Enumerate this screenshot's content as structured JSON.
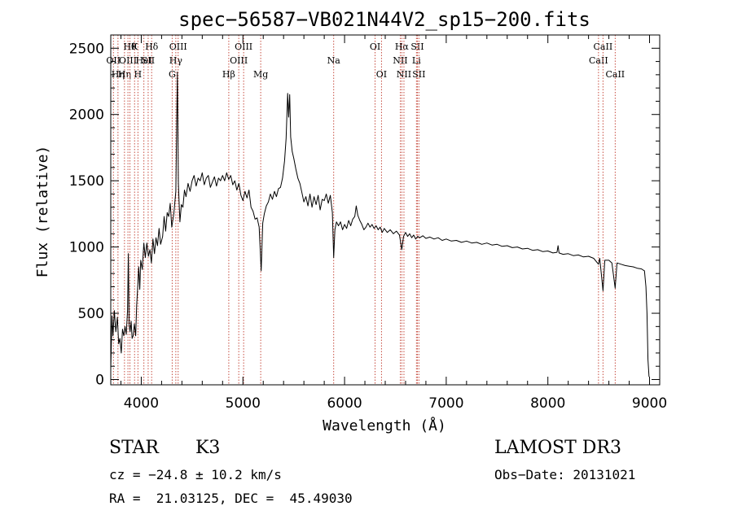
{
  "chart_data": {
    "type": "line",
    "title": "spec−56587−VB021N44V2_sp15−200.fits",
    "xlabel": "Wavelength (Å)",
    "ylabel": "Flux (relative)",
    "xlim": [
      3700,
      9100
    ],
    "ylim": [
      -40,
      2600
    ],
    "xticks": [
      4000,
      5000,
      6000,
      7000,
      8000,
      9000
    ],
    "yticks": [
      0,
      500,
      1000,
      1500,
      2000,
      2500
    ],
    "line_color": "#000000",
    "marker_color": "#c0392b",
    "series": [
      {
        "name": "flux",
        "points": [
          [
            3700,
            80
          ],
          [
            3712,
            480
          ],
          [
            3722,
            330
          ],
          [
            3735,
            520
          ],
          [
            3750,
            360
          ],
          [
            3765,
            470
          ],
          [
            3778,
            270
          ],
          [
            3790,
            310
          ],
          [
            3803,
            200
          ],
          [
            3815,
            380
          ],
          [
            3828,
            330
          ],
          [
            3840,
            400
          ],
          [
            3852,
            340
          ],
          [
            3865,
            520
          ],
          [
            3873,
            950
          ],
          [
            3880,
            420
          ],
          [
            3890,
            360
          ],
          [
            3900,
            440
          ],
          [
            3910,
            310
          ],
          [
            3920,
            330
          ],
          [
            3932,
            420
          ],
          [
            3945,
            330
          ],
          [
            3955,
            560
          ],
          [
            3965,
            700
          ],
          [
            3975,
            850
          ],
          [
            3985,
            680
          ],
          [
            3995,
            900
          ],
          [
            4010,
            830
          ],
          [
            4025,
            1030
          ],
          [
            4040,
            920
          ],
          [
            4055,
            1030
          ],
          [
            4070,
            930
          ],
          [
            4085,
            980
          ],
          [
            4100,
            880
          ],
          [
            4115,
            1060
          ],
          [
            4130,
            950
          ],
          [
            4145,
            1070
          ],
          [
            4160,
            1010
          ],
          [
            4175,
            1140
          ],
          [
            4190,
            1020
          ],
          [
            4210,
            1080
          ],
          [
            4225,
            1230
          ],
          [
            4240,
            1120
          ],
          [
            4255,
            1260
          ],
          [
            4270,
            1230
          ],
          [
            4285,
            1330
          ],
          [
            4300,
            1150
          ],
          [
            4320,
            1250
          ],
          [
            4340,
            1420
          ],
          [
            4355,
            2320
          ],
          [
            4365,
            1480
          ],
          [
            4380,
            1190
          ],
          [
            4395,
            1320
          ],
          [
            4410,
            1300
          ],
          [
            4425,
            1430
          ],
          [
            4440,
            1380
          ],
          [
            4460,
            1480
          ],
          [
            4480,
            1420
          ],
          [
            4500,
            1500
          ],
          [
            4520,
            1540
          ],
          [
            4540,
            1460
          ],
          [
            4560,
            1520
          ],
          [
            4580,
            1500
          ],
          [
            4600,
            1560
          ],
          [
            4620,
            1470
          ],
          [
            4640,
            1520
          ],
          [
            4660,
            1540
          ],
          [
            4680,
            1450
          ],
          [
            4700,
            1490
          ],
          [
            4720,
            1530
          ],
          [
            4740,
            1460
          ],
          [
            4760,
            1520
          ],
          [
            4780,
            1500
          ],
          [
            4800,
            1540
          ],
          [
            4820,
            1500
          ],
          [
            4840,
            1560
          ],
          [
            4860,
            1510
          ],
          [
            4880,
            1540
          ],
          [
            4900,
            1470
          ],
          [
            4920,
            1500
          ],
          [
            4940,
            1430
          ],
          [
            4960,
            1480
          ],
          [
            4980,
            1390
          ],
          [
            5000,
            1350
          ],
          [
            5020,
            1420
          ],
          [
            5040,
            1370
          ],
          [
            5060,
            1430
          ],
          [
            5080,
            1300
          ],
          [
            5100,
            1270
          ],
          [
            5120,
            1210
          ],
          [
            5140,
            1220
          ],
          [
            5160,
            1150
          ],
          [
            5180,
            820
          ],
          [
            5195,
            1180
          ],
          [
            5210,
            1250
          ],
          [
            5230,
            1310
          ],
          [
            5250,
            1340
          ],
          [
            5270,
            1400
          ],
          [
            5290,
            1360
          ],
          [
            5310,
            1420
          ],
          [
            5330,
            1380
          ],
          [
            5350,
            1440
          ],
          [
            5370,
            1450
          ],
          [
            5390,
            1520
          ],
          [
            5410,
            1650
          ],
          [
            5425,
            1820
          ],
          [
            5440,
            2160
          ],
          [
            5450,
            1980
          ],
          [
            5460,
            2150
          ],
          [
            5470,
            1830
          ],
          [
            5485,
            1720
          ],
          [
            5500,
            1670
          ],
          [
            5520,
            1590
          ],
          [
            5540,
            1520
          ],
          [
            5560,
            1480
          ],
          [
            5580,
            1410
          ],
          [
            5600,
            1340
          ],
          [
            5620,
            1380
          ],
          [
            5640,
            1310
          ],
          [
            5660,
            1400
          ],
          [
            5680,
            1300
          ],
          [
            5700,
            1380
          ],
          [
            5720,
            1320
          ],
          [
            5740,
            1390
          ],
          [
            5760,
            1280
          ],
          [
            5780,
            1360
          ],
          [
            5800,
            1350
          ],
          [
            5820,
            1400
          ],
          [
            5840,
            1330
          ],
          [
            5860,
            1390
          ],
          [
            5880,
            1260
          ],
          [
            5893,
            920
          ],
          [
            5905,
            1130
          ],
          [
            5920,
            1190
          ],
          [
            5940,
            1160
          ],
          [
            5960,
            1190
          ],
          [
            5980,
            1130
          ],
          [
            6000,
            1170
          ],
          [
            6020,
            1140
          ],
          [
            6040,
            1200
          ],
          [
            6060,
            1160
          ],
          [
            6080,
            1210
          ],
          [
            6100,
            1230
          ],
          [
            6115,
            1310
          ],
          [
            6130,
            1240
          ],
          [
            6150,
            1200
          ],
          [
            6170,
            1170
          ],
          [
            6190,
            1130
          ],
          [
            6210,
            1150
          ],
          [
            6230,
            1180
          ],
          [
            6250,
            1150
          ],
          [
            6270,
            1170
          ],
          [
            6290,
            1140
          ],
          [
            6310,
            1160
          ],
          [
            6330,
            1130
          ],
          [
            6350,
            1150
          ],
          [
            6370,
            1110
          ],
          [
            6390,
            1140
          ],
          [
            6420,
            1110
          ],
          [
            6450,
            1130
          ],
          [
            6480,
            1100
          ],
          [
            6510,
            1120
          ],
          [
            6540,
            1090
          ],
          [
            6563,
            980
          ],
          [
            6580,
            1080
          ],
          [
            6600,
            1110
          ],
          [
            6620,
            1080
          ],
          [
            6640,
            1100
          ],
          [
            6660,
            1070
          ],
          [
            6680,
            1090
          ],
          [
            6700,
            1060
          ],
          [
            6720,
            1080
          ],
          [
            6740,
            1070
          ],
          [
            6770,
            1085
          ],
          [
            6800,
            1065
          ],
          [
            6840,
            1075
          ],
          [
            6880,
            1060
          ],
          [
            6920,
            1070
          ],
          [
            6960,
            1050
          ],
          [
            7000,
            1060
          ],
          [
            7050,
            1045
          ],
          [
            7100,
            1050
          ],
          [
            7150,
            1035
          ],
          [
            7200,
            1045
          ],
          [
            7250,
            1030
          ],
          [
            7300,
            1035
          ],
          [
            7350,
            1020
          ],
          [
            7400,
            1030
          ],
          [
            7450,
            1015
          ],
          [
            7500,
            1020
          ],
          [
            7550,
            1005
          ],
          [
            7600,
            1010
          ],
          [
            7650,
            995
          ],
          [
            7700,
            1000
          ],
          [
            7750,
            985
          ],
          [
            7800,
            990
          ],
          [
            7850,
            975
          ],
          [
            7900,
            980
          ],
          [
            7950,
            965
          ],
          [
            8000,
            970
          ],
          [
            8050,
            955
          ],
          [
            8090,
            960
          ],
          [
            8100,
            1010
          ],
          [
            8110,
            955
          ],
          [
            8150,
            945
          ],
          [
            8200,
            950
          ],
          [
            8250,
            935
          ],
          [
            8300,
            940
          ],
          [
            8350,
            925
          ],
          [
            8400,
            930
          ],
          [
            8450,
            915
          ],
          [
            8498,
            870
          ],
          [
            8510,
            915
          ],
          [
            8542,
            670
          ],
          [
            8560,
            900
          ],
          [
            8600,
            900
          ],
          [
            8630,
            880
          ],
          [
            8662,
            690
          ],
          [
            8680,
            880
          ],
          [
            8720,
            870
          ],
          [
            8760,
            860
          ],
          [
            8800,
            855
          ],
          [
            8840,
            850
          ],
          [
            8880,
            840
          ],
          [
            8920,
            835
          ],
          [
            8950,
            820
          ],
          [
            8965,
            700
          ],
          [
            8975,
            500
          ],
          [
            8985,
            150
          ],
          [
            8995,
            20
          ]
        ]
      }
    ],
    "lines": [
      {
        "wl": 3726,
        "label": "OII",
        "row": 1
      },
      {
        "wl": 3771,
        "label": "Hη",
        "row": 2
      },
      {
        "wl": 3835,
        "label": "Hη",
        "row": 2
      },
      {
        "wl": 3869,
        "label": "OIII",
        "row": 1
      },
      {
        "wl": 3889,
        "label": "Hθ",
        "row": 0
      },
      {
        "wl": 3934,
        "label": "K",
        "row": 0
      },
      {
        "wl": 3967,
        "label": "H",
        "row": 2
      },
      {
        "wl": 4026,
        "label": "HeI",
        "row": 1
      },
      {
        "wl": 4068,
        "label": "SII",
        "row": 1
      },
      {
        "wl": 4102,
        "label": "Hδ",
        "row": 0
      },
      {
        "wl": 4304,
        "label": "G",
        "row": 2
      },
      {
        "wl": 4340,
        "label": "Hγ",
        "row": 1
      },
      {
        "wl": 4363,
        "label": "OIII",
        "row": 0
      },
      {
        "wl": 4861,
        "label": "Hβ",
        "row": 2
      },
      {
        "wl": 4959,
        "label": "OIII",
        "row": 1
      },
      {
        "wl": 5007,
        "label": "OIII",
        "row": 0
      },
      {
        "wl": 5175,
        "label": "Mg",
        "row": 2
      },
      {
        "wl": 5893,
        "label": "Na",
        "row": 1
      },
      {
        "wl": 6300,
        "label": "OI",
        "row": 0
      },
      {
        "wl": 6363,
        "label": "OI",
        "row": 2
      },
      {
        "wl": 6548,
        "label": "NII",
        "row": 1
      },
      {
        "wl": 6563,
        "label": "Hα",
        "row": 0
      },
      {
        "wl": 6584,
        "label": "NII",
        "row": 2
      },
      {
        "wl": 6707,
        "label": "Li",
        "row": 1
      },
      {
        "wl": 6716,
        "label": "SII",
        "row": 0
      },
      {
        "wl": 6731,
        "label": "SII",
        "row": 2
      },
      {
        "wl": 8498,
        "label": "CaII",
        "row": 1
      },
      {
        "wl": 8542,
        "label": "CaII",
        "row": 0
      },
      {
        "wl": 8662,
        "label": "CaII",
        "row": 2
      }
    ]
  },
  "info": {
    "object_class": "STAR",
    "subclass": "K3",
    "survey": "LAMOST DR3",
    "redshift": "cz = −24.8 ± 10.2 km/s",
    "obs_date": "Obs−Date: 20131021",
    "coords": "RA =  21.03125, DEC =  45.49030"
  }
}
